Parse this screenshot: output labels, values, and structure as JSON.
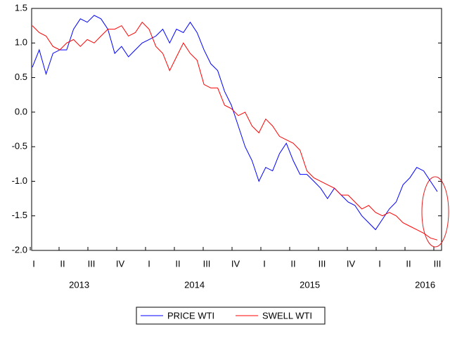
{
  "chart_data": {
    "type": "line",
    "quarters": [
      "I",
      "II",
      "III",
      "IV",
      "I",
      "II",
      "III",
      "IV",
      "I",
      "II",
      "III",
      "IV",
      "I",
      "II",
      "III"
    ],
    "years": [
      "2013",
      "2014",
      "2015",
      "2016"
    ],
    "ylim": [
      -2,
      1.5
    ],
    "yticks": [
      {
        "value": -2,
        "label": "-2.0"
      },
      -1.5,
      {
        "value": -1,
        "label": "-1.0"
      },
      -0.5,
      {
        "value": 0,
        "label": "0.0"
      },
      0.5,
      {
        "value": 1,
        "label": "1.0"
      },
      1.5
    ],
    "series": [
      {
        "name": "PRICE WTI",
        "color": "#0000ff",
        "values": [
          0.65,
          0.9,
          0.55,
          0.85,
          0.9,
          0.9,
          1.2,
          1.35,
          1.3,
          1.4,
          1.35,
          1.2,
          0.85,
          0.95,
          0.8,
          0.9,
          1.0,
          1.05,
          1.1,
          1.2,
          1.0,
          1.2,
          1.15,
          1.3,
          1.15,
          0.9,
          0.7,
          0.6,
          0.3,
          0.1,
          -0.2,
          -0.5,
          -0.7,
          -1.0,
          -0.8,
          -0.85,
          -0.6,
          -0.45,
          -0.7,
          -0.9,
          -0.9,
          -1.0,
          -1.1,
          -1.25,
          -1.1,
          -1.2,
          -1.3,
          -1.35,
          -1.5,
          -1.6,
          -1.7,
          -1.55,
          -1.4,
          -1.3,
          -1.05,
          -0.95,
          -0.8,
          -0.85,
          -1.0,
          -1.15
        ]
      },
      {
        "name": "SWELL WTI",
        "color": "#ff0000",
        "values": [
          1.25,
          1.15,
          1.1,
          0.95,
          0.9,
          1.0,
          1.05,
          0.95,
          1.05,
          1.0,
          1.1,
          1.2,
          1.2,
          1.25,
          1.1,
          1.15,
          1.3,
          1.2,
          0.95,
          0.85,
          0.6,
          0.8,
          1.0,
          0.85,
          0.75,
          0.4,
          0.35,
          0.35,
          0.1,
          0.05,
          -0.05,
          0.0,
          -0.2,
          -0.3,
          -0.1,
          -0.2,
          -0.35,
          -0.4,
          -0.45,
          -0.55,
          -0.85,
          -0.95,
          -1.0,
          -1.05,
          -1.1,
          -1.2,
          -1.2,
          -1.3,
          -1.4,
          -1.35,
          -1.45,
          -1.5,
          -1.45,
          -1.5,
          -1.6,
          -1.65,
          -1.7,
          -1.75,
          -1.82,
          -1.85
        ]
      }
    ]
  }
}
